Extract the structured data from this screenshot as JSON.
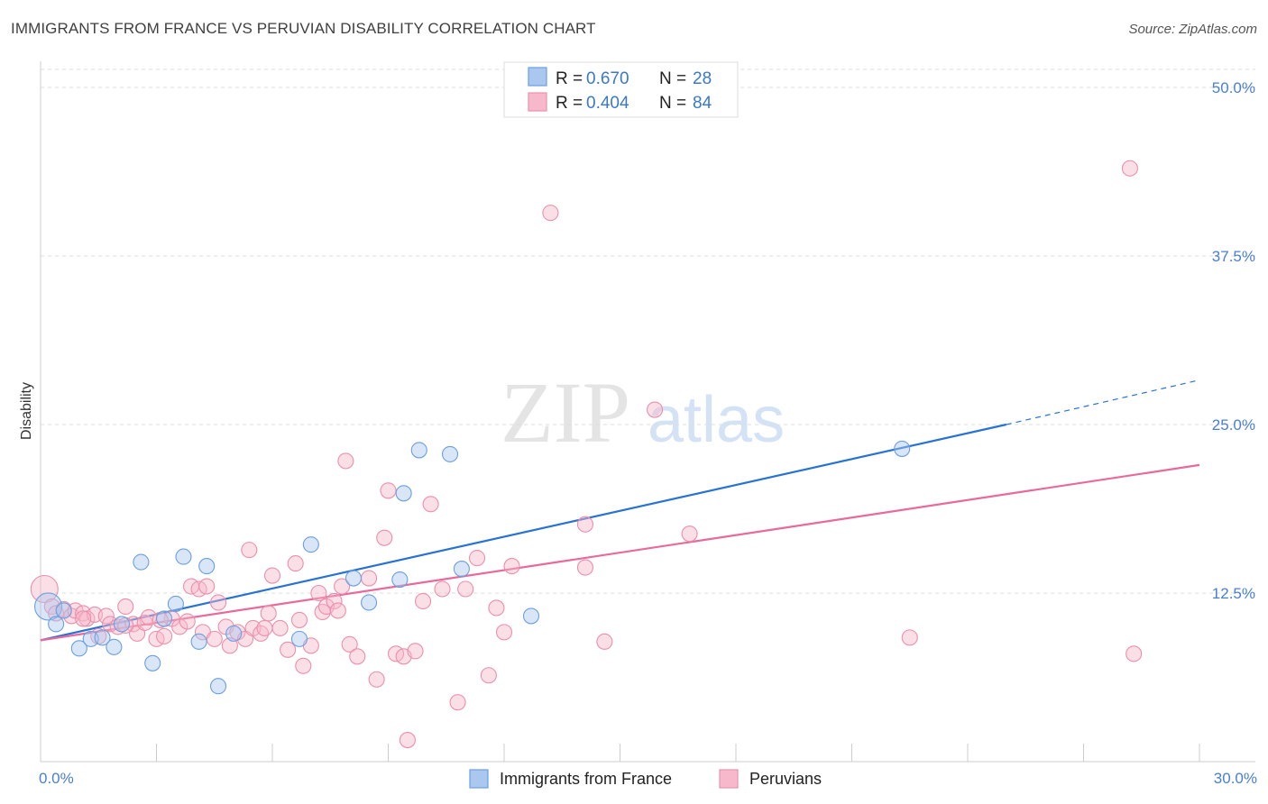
{
  "title": "IMMIGRANTS FROM FRANCE VS PERUVIAN DISABILITY CORRELATION CHART",
  "source": "Source: ZipAtlas.com",
  "watermark": {
    "zip": "ZIP",
    "atlas": "atlas"
  },
  "colors": {
    "blue_fill": "#a9c7ef",
    "blue_stroke": "#6b9fe0",
    "blue_line": "#2872d6",
    "pink_fill": "#f6b8ca",
    "pink_stroke": "#ec8fab",
    "pink_line": "#e8699a",
    "grid": "#dddddd",
    "axis_text": "#4a7fd0"
  },
  "legend": [
    {
      "r_label": "R =",
      "r_value": "0.670",
      "n_label": "N =",
      "n_value": "28",
      "series": "france"
    },
    {
      "r_label": "R =",
      "r_value": "0.404",
      "n_label": "N =",
      "n_value": "84",
      "series": "peru"
    }
  ],
  "chart_data": {
    "type": "scatter",
    "title": "IMMIGRANTS FROM FRANCE VS PERUVIAN DISABILITY CORRELATION CHART",
    "xlabel": "",
    "ylabel": "Disability",
    "xlim": [
      0,
      30
    ],
    "ylim": [
      0,
      50
    ],
    "x_tick_labels": [
      "0.0%",
      "30.0%"
    ],
    "y_ticks": [
      12.5,
      25.0,
      37.5,
      50.0
    ],
    "y_tick_labels": [
      "12.5%",
      "25.0%",
      "37.5%",
      "50.0%"
    ],
    "grid": true,
    "series": [
      {
        "name": "Immigrants from France",
        "key": "france",
        "trend": {
          "x0": 0,
          "y0": 9.0,
          "x1": 25,
          "y1": 25.0,
          "dash_to_x": 30,
          "dash_to_y": 28.3
        },
        "points": [
          {
            "x": 0.2,
            "y": 11.5,
            "big": true
          },
          {
            "x": 0.4,
            "y": 10.2
          },
          {
            "x": 1.0,
            "y": 8.4
          },
          {
            "x": 1.3,
            "y": 9.1
          },
          {
            "x": 1.6,
            "y": 9.2
          },
          {
            "x": 1.9,
            "y": 8.5
          },
          {
            "x": 2.1,
            "y": 10.2
          },
          {
            "x": 2.6,
            "y": 14.8
          },
          {
            "x": 2.9,
            "y": 7.3
          },
          {
            "x": 3.2,
            "y": 10.6
          },
          {
            "x": 3.5,
            "y": 11.7
          },
          {
            "x": 3.7,
            "y": 15.2
          },
          {
            "x": 4.1,
            "y": 8.9
          },
          {
            "x": 4.3,
            "y": 14.5
          },
          {
            "x": 4.6,
            "y": 5.6
          },
          {
            "x": 5.0,
            "y": 9.5
          },
          {
            "x": 6.7,
            "y": 9.1
          },
          {
            "x": 7.0,
            "y": 16.1
          },
          {
            "x": 8.1,
            "y": 13.6
          },
          {
            "x": 8.5,
            "y": 11.8
          },
          {
            "x": 9.3,
            "y": 13.5
          },
          {
            "x": 9.4,
            "y": 19.9
          },
          {
            "x": 9.8,
            "y": 23.1
          },
          {
            "x": 10.6,
            "y": 22.8
          },
          {
            "x": 10.9,
            "y": 14.3
          },
          {
            "x": 12.7,
            "y": 10.8
          },
          {
            "x": 22.3,
            "y": 23.2
          },
          {
            "x": 0.6,
            "y": 11.2
          }
        ]
      },
      {
        "name": "Peruvians",
        "key": "peru",
        "trend": {
          "x0": 0,
          "y0": 9.0,
          "x1": 30,
          "y1": 22.0
        },
        "points": [
          {
            "x": 0.1,
            "y": 12.8,
            "big": true
          },
          {
            "x": 0.3,
            "y": 11.5
          },
          {
            "x": 0.4,
            "y": 11.0
          },
          {
            "x": 0.6,
            "y": 11.3
          },
          {
            "x": 0.8,
            "y": 10.8
          },
          {
            "x": 0.9,
            "y": 11.2
          },
          {
            "x": 1.1,
            "y": 11.0
          },
          {
            "x": 1.2,
            "y": 10.6
          },
          {
            "x": 1.4,
            "y": 10.9
          },
          {
            "x": 1.5,
            "y": 9.3
          },
          {
            "x": 1.7,
            "y": 10.8
          },
          {
            "x": 1.8,
            "y": 10.2
          },
          {
            "x": 2.0,
            "y": 10.0
          },
          {
            "x": 2.2,
            "y": 11.5
          },
          {
            "x": 2.4,
            "y": 10.2
          },
          {
            "x": 2.5,
            "y": 9.5
          },
          {
            "x": 2.7,
            "y": 10.3
          },
          {
            "x": 2.8,
            "y": 10.7
          },
          {
            "x": 3.0,
            "y": 9.1
          },
          {
            "x": 3.2,
            "y": 9.3
          },
          {
            "x": 3.4,
            "y": 10.6
          },
          {
            "x": 3.6,
            "y": 10.0
          },
          {
            "x": 3.8,
            "y": 10.4
          },
          {
            "x": 3.9,
            "y": 13.0
          },
          {
            "x": 4.1,
            "y": 12.8
          },
          {
            "x": 4.2,
            "y": 9.6
          },
          {
            "x": 4.3,
            "y": 13.0
          },
          {
            "x": 4.5,
            "y": 9.1
          },
          {
            "x": 4.6,
            "y": 11.8
          },
          {
            "x": 4.8,
            "y": 10.0
          },
          {
            "x": 4.9,
            "y": 8.6
          },
          {
            "x": 5.1,
            "y": 9.6
          },
          {
            "x": 5.3,
            "y": 9.1
          },
          {
            "x": 5.4,
            "y": 15.7
          },
          {
            "x": 5.5,
            "y": 9.9
          },
          {
            "x": 5.7,
            "y": 9.5
          },
          {
            "x": 5.9,
            "y": 11.0
          },
          {
            "x": 6.0,
            "y": 13.8
          },
          {
            "x": 6.2,
            "y": 9.9
          },
          {
            "x": 6.4,
            "y": 8.3
          },
          {
            "x": 6.6,
            "y": 14.7
          },
          {
            "x": 6.7,
            "y": 10.5
          },
          {
            "x": 6.8,
            "y": 7.1
          },
          {
            "x": 7.0,
            "y": 8.6
          },
          {
            "x": 7.2,
            "y": 12.5
          },
          {
            "x": 7.3,
            "y": 11.1
          },
          {
            "x": 7.4,
            "y": 11.5
          },
          {
            "x": 7.6,
            "y": 11.9
          },
          {
            "x": 7.8,
            "y": 13.0
          },
          {
            "x": 7.9,
            "y": 22.3
          },
          {
            "x": 8.0,
            "y": 8.7
          },
          {
            "x": 8.2,
            "y": 7.8
          },
          {
            "x": 8.5,
            "y": 13.6
          },
          {
            "x": 8.7,
            "y": 6.1
          },
          {
            "x": 8.9,
            "y": 16.6
          },
          {
            "x": 9.0,
            "y": 20.1
          },
          {
            "x": 9.2,
            "y": 8.0
          },
          {
            "x": 9.4,
            "y": 7.8
          },
          {
            "x": 9.5,
            "y": 1.6
          },
          {
            "x": 9.7,
            "y": 8.2
          },
          {
            "x": 9.9,
            "y": 11.9
          },
          {
            "x": 10.1,
            "y": 19.1
          },
          {
            "x": 10.4,
            "y": 12.8
          },
          {
            "x": 10.8,
            "y": 4.4
          },
          {
            "x": 11.0,
            "y": 12.8
          },
          {
            "x": 11.3,
            "y": 15.1
          },
          {
            "x": 11.6,
            "y": 6.4
          },
          {
            "x": 11.8,
            "y": 11.4
          },
          {
            "x": 12.0,
            "y": 9.6
          },
          {
            "x": 12.2,
            "y": 14.5
          },
          {
            "x": 13.2,
            "y": 40.7
          },
          {
            "x": 14.1,
            "y": 17.6
          },
          {
            "x": 14.1,
            "y": 14.4
          },
          {
            "x": 14.6,
            "y": 8.9
          },
          {
            "x": 15.9,
            "y": 26.1
          },
          {
            "x": 16.8,
            "y": 16.9
          },
          {
            "x": 22.5,
            "y": 9.2
          },
          {
            "x": 28.2,
            "y": 44.0
          },
          {
            "x": 28.3,
            "y": 8.0
          },
          {
            "x": 5.8,
            "y": 9.9
          },
          {
            "x": 3.1,
            "y": 10.5
          },
          {
            "x": 2.2,
            "y": 10.1
          },
          {
            "x": 1.1,
            "y": 10.6
          },
          {
            "x": 7.7,
            "y": 11.2
          }
        ]
      }
    ]
  }
}
